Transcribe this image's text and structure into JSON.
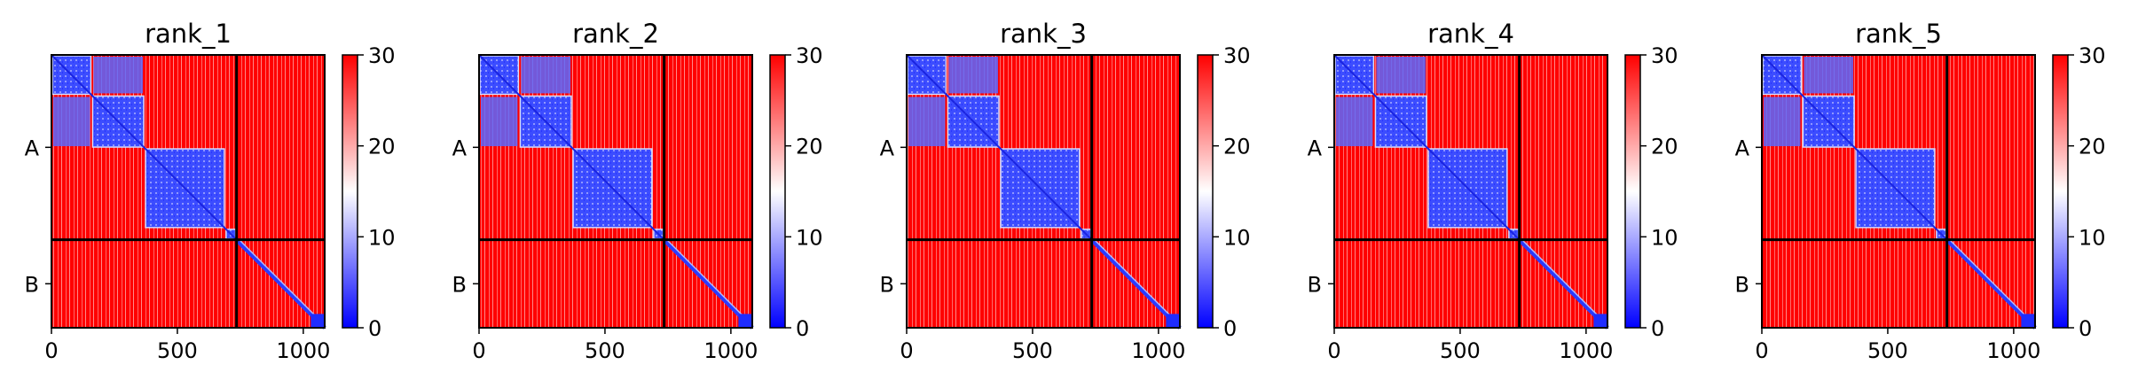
{
  "chart_data": {
    "type": "heatmap",
    "description": "predicted aligned error (PAE) matrices for 5 ranked models",
    "colorbar": {
      "min": 0,
      "max": 30,
      "ticks": [
        0,
        10,
        20,
        30
      ],
      "colormap": [
        "#0000ff",
        "#ffffff",
        "#ff0000"
      ]
    },
    "x_ticks": [
      0,
      500,
      1000
    ],
    "axis_range": [
      0,
      1085
    ],
    "chain_boundary": 735,
    "y_tick_labels": [
      "A",
      "B"
    ],
    "panels": [
      {
        "title": "rank_1"
      },
      {
        "title": "rank_2"
      },
      {
        "title": "rank_3"
      },
      {
        "title": "rank_4"
      },
      {
        "title": "rank_5"
      }
    ]
  }
}
